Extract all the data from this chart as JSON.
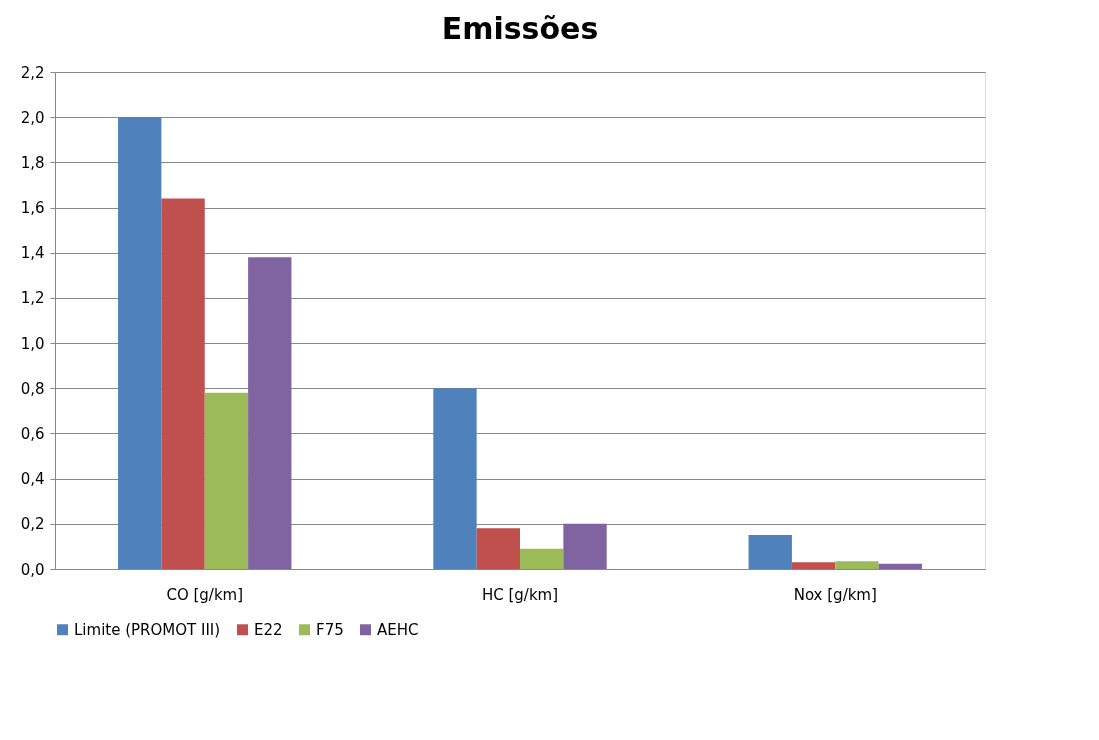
{
  "chart_data": {
    "type": "bar",
    "title": "Emissões",
    "categories": [
      "CO [g/km]",
      "HC [g/km]",
      "Nox [g/km]"
    ],
    "series": [
      {
        "name": "Limite (PROMOT III)",
        "color": "#4f81bd",
        "values": [
          2.0,
          0.8,
          0.15
        ]
      },
      {
        "name": "E22",
        "color": "#c0504d",
        "values": [
          1.64,
          0.18,
          0.03
        ]
      },
      {
        "name": "F75",
        "color": "#9bbb59",
        "values": [
          0.78,
          0.09,
          0.034
        ]
      },
      {
        "name": "AEHC",
        "color": "#8064a2",
        "values": [
          1.38,
          0.2,
          0.023
        ]
      }
    ],
    "ylim": [
      0,
      2.2
    ],
    "yticks": [
      {
        "value": 0,
        "label": "0,0"
      },
      {
        "value": 0.2,
        "label": "0,2"
      },
      {
        "value": 0.4,
        "label": "0,4"
      },
      {
        "value": 0.6,
        "label": "0,6"
      },
      {
        "value": 0.8,
        "label": "0,8"
      },
      {
        "value": 1.0,
        "label": "1,0"
      },
      {
        "value": 1.2,
        "label": "1,2"
      },
      {
        "value": 1.4,
        "label": "1,4"
      },
      {
        "value": 1.6,
        "label": "1,6"
      },
      {
        "value": 1.8,
        "label": "1,8"
      },
      {
        "value": 2.0,
        "label": "2,0"
      },
      {
        "value": 2.2,
        "label": "2,2"
      }
    ],
    "grid": "y",
    "legend": "bottom"
  }
}
